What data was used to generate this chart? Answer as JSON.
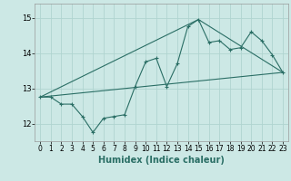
{
  "xlabel": "Humidex (Indice chaleur)",
  "xlim": [
    -0.5,
    23.5
  ],
  "ylim": [
    11.5,
    15.4
  ],
  "yticks": [
    12,
    13,
    14,
    15
  ],
  "xticks": [
    0,
    1,
    2,
    3,
    4,
    5,
    6,
    7,
    8,
    9,
    10,
    11,
    12,
    13,
    14,
    15,
    16,
    17,
    18,
    19,
    20,
    21,
    22,
    23
  ],
  "bg_color": "#cce8e5",
  "line_color": "#2a6e65",
  "grid_color": "#b0d4d0",
  "series1_x": [
    0,
    1,
    2,
    3,
    4,
    5,
    6,
    7,
    8,
    9,
    10,
    11,
    12,
    13,
    14,
    15,
    16,
    17,
    18,
    19,
    20,
    21,
    22,
    23
  ],
  "series1_y": [
    12.75,
    12.75,
    12.55,
    12.55,
    12.2,
    11.75,
    12.15,
    12.2,
    12.25,
    13.05,
    13.75,
    13.85,
    13.05,
    13.7,
    14.75,
    14.95,
    14.3,
    14.35,
    14.1,
    14.15,
    14.6,
    14.35,
    13.95,
    13.45
  ],
  "series2_x": [
    0,
    23
  ],
  "series2_y": [
    12.75,
    13.45
  ],
  "series3_x": [
    0,
    15,
    23
  ],
  "series3_y": [
    12.75,
    14.95,
    13.45
  ],
  "xlabel_fontsize": 7,
  "tick_fontsize": 5.5
}
